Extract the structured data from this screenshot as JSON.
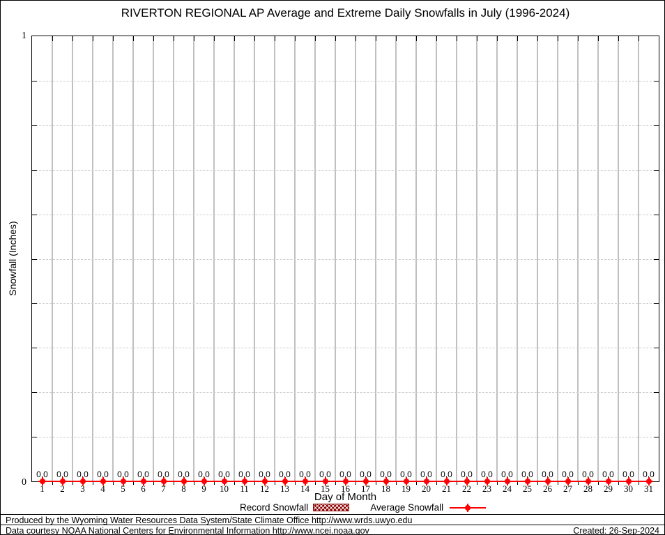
{
  "chart_data": {
    "type": "line",
    "title": "RIVERTON REGIONAL AP Average and Extreme Daily Snowfalls in July (1996-2024)",
    "xlabel": "Day of Month",
    "ylabel": "Snowfall (Inches)",
    "x": [
      1,
      2,
      3,
      4,
      5,
      6,
      7,
      8,
      9,
      10,
      11,
      12,
      13,
      14,
      15,
      16,
      17,
      18,
      19,
      20,
      21,
      22,
      23,
      24,
      25,
      26,
      27,
      28,
      29,
      30,
      31
    ],
    "series": [
      {
        "name": "Record Snowfall",
        "type": "bar",
        "color": "#8b0000",
        "values": [
          0,
          0,
          0,
          0,
          0,
          0,
          0,
          0,
          0,
          0,
          0,
          0,
          0,
          0,
          0,
          0,
          0,
          0,
          0,
          0,
          0,
          0,
          0,
          0,
          0,
          0,
          0,
          0,
          0,
          0,
          0
        ]
      },
      {
        "name": "Average Snowfall",
        "type": "line",
        "color": "#ff0000",
        "values": [
          0,
          0,
          0,
          0,
          0,
          0,
          0,
          0,
          0,
          0,
          0,
          0,
          0,
          0,
          0,
          0,
          0,
          0,
          0,
          0,
          0,
          0,
          0,
          0,
          0,
          0,
          0,
          0,
          0,
          0,
          0
        ]
      }
    ],
    "point_label_format": "0.0",
    "ylim": [
      0,
      1
    ],
    "y_grid_step": 0.1,
    "y_max_label": "1",
    "y_min_label": "0",
    "grid": {
      "vertical": "solid",
      "horizontal": "dashed"
    },
    "legend_position": "bottom",
    "colors": {
      "average_line": "#ff0000",
      "record_fill": "#8b0000",
      "gridline": "#c0c0c0"
    }
  },
  "footer": {
    "line1": "Produced by the Wyoming Water Resources Data System/State Climate Office http://www.wrds.uwyo.edu",
    "line2": "Data courtesy NOAA National Centers for Environmental Information http://www.ncei.noaa.gov",
    "created": "Created: 26-Sep-2024"
  }
}
